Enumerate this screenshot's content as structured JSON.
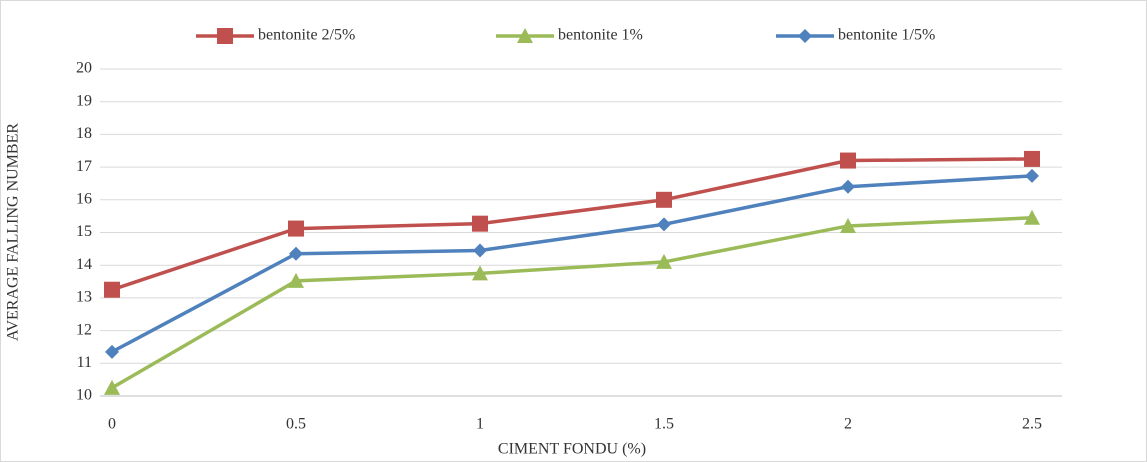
{
  "chart_data": {
    "type": "line",
    "x_label": "CIMENT FONDU (%)",
    "y_label": "AVERAGE FALLING NUMBER",
    "x": [
      0,
      0.5,
      1,
      1.5,
      2,
      2.5
    ],
    "xlim": [
      0,
      2.5
    ],
    "xticks": [
      0,
      0.5,
      1,
      1.5,
      2,
      2.5
    ],
    "ylim": [
      10,
      20
    ],
    "yticks": [
      10,
      11,
      12,
      13,
      14,
      15,
      16,
      17,
      18,
      19,
      20
    ],
    "grid": true,
    "legend": "top",
    "series": [
      {
        "name": "bentonite  2/5%",
        "color": "#c0504d",
        "marker": "square",
        "values": [
          13.25,
          15.12,
          15.27,
          16.0,
          17.2,
          17.25
        ]
      },
      {
        "name": "bentonite 1%",
        "color": "#9bbb59",
        "marker": "triangle",
        "values": [
          10.25,
          13.52,
          13.75,
          14.1,
          15.2,
          15.45
        ]
      },
      {
        "name": "bentonite  1/5%",
        "color": "#4f81bd",
        "marker": "diamond",
        "values": [
          11.35,
          14.35,
          14.45,
          15.25,
          16.4,
          16.73
        ]
      }
    ]
  }
}
